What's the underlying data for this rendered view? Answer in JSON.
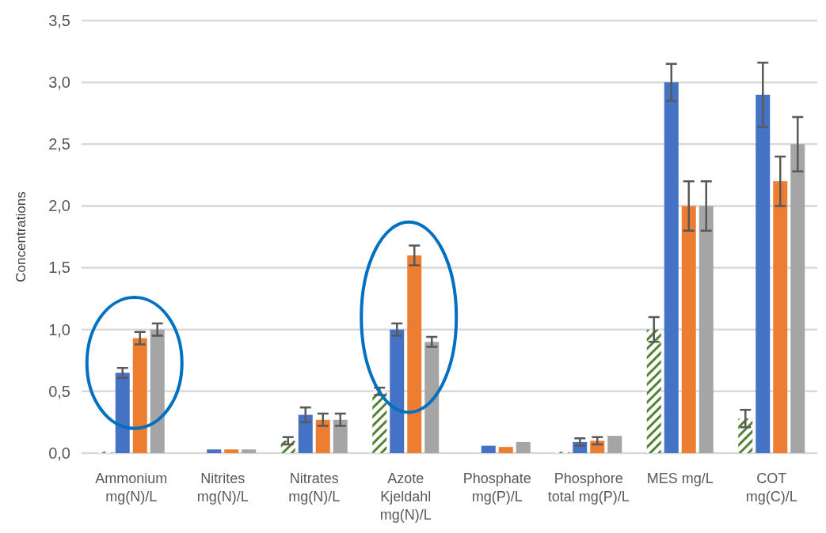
{
  "chart_data": {
    "type": "bar",
    "ylabel": "Concentrations",
    "categories": [
      "Ammonium mg(N)/L",
      "Nitrites mg(N)/L",
      "Nitrates mg(N)/L",
      "Azote Kjeldahl mg(N)/L",
      "Phosphate mg(P)/L",
      "Phosphore total mg(P)/L",
      "MES mg/L",
      "COT mg(C)/L"
    ],
    "series": [
      {
        "color": "#548235",
        "values": [
          0.01,
          null,
          0.1,
          0.5,
          null,
          0.01,
          1.0,
          0.28
        ],
        "errors": [
          null,
          null,
          0.03,
          0.03,
          null,
          null,
          0.1,
          0.07
        ]
      },
      {
        "color": "#4472c4",
        "values": [
          0.65,
          0.03,
          0.31,
          1.0,
          0.06,
          0.09,
          3.0,
          2.9
        ],
        "errors": [
          0.04,
          null,
          0.06,
          0.05,
          null,
          0.03,
          0.15,
          0.26
        ]
      },
      {
        "color": "#ed7d31",
        "values": [
          0.93,
          0.03,
          0.27,
          1.6,
          0.05,
          0.1,
          2.0,
          2.2
        ],
        "errors": [
          0.05,
          null,
          0.05,
          0.08,
          null,
          0.03,
          0.2,
          0.2
        ]
      },
      {
        "color": "#a5a5a5",
        "values": [
          1.0,
          0.03,
          0.27,
          0.9,
          0.09,
          0.14,
          2.0,
          2.5
        ],
        "errors": [
          0.05,
          null,
          0.05,
          0.04,
          null,
          null,
          0.2,
          0.22
        ]
      }
    ],
    "ylim": [
      0,
      3.5
    ],
    "yticks": [
      {
        "value": 0,
        "label": "0,0"
      },
      {
        "value": 0.5,
        "label": "0,5"
      },
      {
        "value": 1,
        "label": "1,0"
      },
      {
        "value": 1.5,
        "label": "1,5"
      },
      {
        "value": 2,
        "label": "2,0"
      },
      {
        "value": 2.5,
        "label": "2,5"
      },
      {
        "value": 3,
        "label": "3,0"
      },
      {
        "value": 3.5,
        "label": "3,5"
      }
    ],
    "grid": "y"
  }
}
